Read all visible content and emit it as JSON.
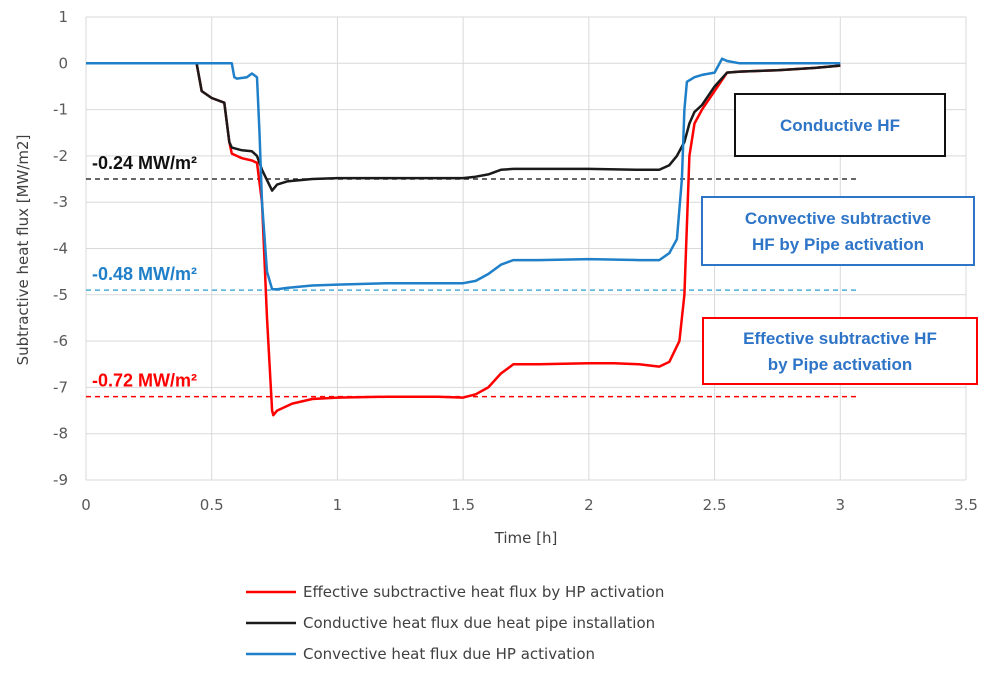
{
  "chart_data": {
    "type": "line",
    "xlabel": "Time [h]",
    "ylabel": "Subtractive heat flux [MW/m2]",
    "xlim": [
      0,
      3.5
    ],
    "ylim": [
      -9,
      1
    ],
    "x_ticks": [
      "0",
      "0.5",
      "1",
      "1.5",
      "2",
      "2.5",
      "3",
      "3.5"
    ],
    "y_ticks": [
      "1",
      "0",
      "-1",
      "-2",
      "-3",
      "-4",
      "-5",
      "-6",
      "-7",
      "-8",
      "-9"
    ],
    "grid": true,
    "legend_position": "bottom",
    "series": [
      {
        "name": "Effective subctractive heat flux by HP activation",
        "color": "#ff0000",
        "points": [
          [
            0,
            0
          ],
          [
            0.2,
            0
          ],
          [
            0.44,
            0
          ],
          [
            0.46,
            -0.6
          ],
          [
            0.5,
            -0.75
          ],
          [
            0.55,
            -0.85
          ],
          [
            0.57,
            -1.7
          ],
          [
            0.58,
            -1.95
          ],
          [
            0.62,
            -2.05
          ],
          [
            0.66,
            -2.1
          ],
          [
            0.68,
            -2.15
          ],
          [
            0.7,
            -3.0
          ],
          [
            0.72,
            -5.5
          ],
          [
            0.74,
            -7.5
          ],
          [
            0.745,
            -7.6
          ],
          [
            0.76,
            -7.5
          ],
          [
            0.82,
            -7.35
          ],
          [
            0.9,
            -7.25
          ],
          [
            1.0,
            -7.22
          ],
          [
            1.2,
            -7.2
          ],
          [
            1.4,
            -7.2
          ],
          [
            1.5,
            -7.22
          ],
          [
            1.55,
            -7.15
          ],
          [
            1.6,
            -7.0
          ],
          [
            1.65,
            -6.7
          ],
          [
            1.7,
            -6.5
          ],
          [
            1.8,
            -6.5
          ],
          [
            2.0,
            -6.48
          ],
          [
            2.1,
            -6.48
          ],
          [
            2.2,
            -6.5
          ],
          [
            2.28,
            -6.55
          ],
          [
            2.32,
            -6.45
          ],
          [
            2.36,
            -6.0
          ],
          [
            2.38,
            -5.0
          ],
          [
            2.39,
            -3.5
          ],
          [
            2.4,
            -2.0
          ],
          [
            2.42,
            -1.3
          ],
          [
            2.45,
            -1.0
          ],
          [
            2.5,
            -0.6
          ],
          [
            2.55,
            -0.2
          ],
          [
            2.6,
            -0.18
          ],
          [
            2.75,
            -0.15
          ],
          [
            2.9,
            -0.1
          ],
          [
            3.0,
            -0.05
          ]
        ]
      },
      {
        "name": "Conductive heat flux due heat pipe installation",
        "color": "#1a1a1a",
        "points": [
          [
            0,
            0
          ],
          [
            0.2,
            0
          ],
          [
            0.44,
            0
          ],
          [
            0.46,
            -0.6
          ],
          [
            0.5,
            -0.75
          ],
          [
            0.55,
            -0.85
          ],
          [
            0.57,
            -1.7
          ],
          [
            0.58,
            -1.82
          ],
          [
            0.62,
            -1.88
          ],
          [
            0.66,
            -1.9
          ],
          [
            0.68,
            -2.0
          ],
          [
            0.7,
            -2.3
          ],
          [
            0.74,
            -2.75
          ],
          [
            0.76,
            -2.62
          ],
          [
            0.8,
            -2.55
          ],
          [
            0.9,
            -2.5
          ],
          [
            1.0,
            -2.48
          ],
          [
            1.2,
            -2.48
          ],
          [
            1.4,
            -2.48
          ],
          [
            1.5,
            -2.48
          ],
          [
            1.55,
            -2.45
          ],
          [
            1.6,
            -2.4
          ],
          [
            1.65,
            -2.3
          ],
          [
            1.7,
            -2.28
          ],
          [
            1.8,
            -2.28
          ],
          [
            2.0,
            -2.28
          ],
          [
            2.2,
            -2.3
          ],
          [
            2.28,
            -2.3
          ],
          [
            2.32,
            -2.2
          ],
          [
            2.35,
            -2.0
          ],
          [
            2.38,
            -1.7
          ],
          [
            2.4,
            -1.3
          ],
          [
            2.42,
            -1.05
          ],
          [
            2.45,
            -0.9
          ],
          [
            2.5,
            -0.5
          ],
          [
            2.55,
            -0.2
          ],
          [
            2.6,
            -0.18
          ],
          [
            2.75,
            -0.15
          ],
          [
            2.9,
            -0.1
          ],
          [
            3.0,
            -0.05
          ]
        ]
      },
      {
        "name": "Convective heat flux due HP activation",
        "color": "#1f7fc8",
        "points": [
          [
            0,
            0
          ],
          [
            0.3,
            0
          ],
          [
            0.58,
            0
          ],
          [
            0.59,
            -0.3
          ],
          [
            0.6,
            -0.33
          ],
          [
            0.64,
            -0.3
          ],
          [
            0.66,
            -0.22
          ],
          [
            0.68,
            -0.3
          ],
          [
            0.69,
            -1.5
          ],
          [
            0.7,
            -3.0
          ],
          [
            0.72,
            -4.5
          ],
          [
            0.74,
            -4.88
          ],
          [
            0.76,
            -4.88
          ],
          [
            0.8,
            -4.85
          ],
          [
            0.9,
            -4.8
          ],
          [
            1.0,
            -4.78
          ],
          [
            1.2,
            -4.75
          ],
          [
            1.4,
            -4.75
          ],
          [
            1.5,
            -4.75
          ],
          [
            1.55,
            -4.7
          ],
          [
            1.6,
            -4.55
          ],
          [
            1.65,
            -4.35
          ],
          [
            1.7,
            -4.25
          ],
          [
            1.8,
            -4.25
          ],
          [
            2.0,
            -4.23
          ],
          [
            2.2,
            -4.25
          ],
          [
            2.28,
            -4.25
          ],
          [
            2.32,
            -4.1
          ],
          [
            2.35,
            -3.8
          ],
          [
            2.37,
            -2.5
          ],
          [
            2.38,
            -1.0
          ],
          [
            2.39,
            -0.4
          ],
          [
            2.42,
            -0.3
          ],
          [
            2.45,
            -0.25
          ],
          [
            2.5,
            -0.2
          ],
          [
            2.53,
            0.1
          ],
          [
            2.55,
            0.05
          ],
          [
            2.6,
            0.0
          ],
          [
            2.8,
            0.0
          ],
          [
            3.0,
            0.0
          ]
        ]
      }
    ],
    "reference_lines": [
      {
        "label": "-0.24 MW/m²",
        "y": -2.5,
        "color": "#333333"
      },
      {
        "label": "-0.48 MW/m²",
        "y": -4.9,
        "color": "#4aaed6"
      },
      {
        "label": "-0.72 MW/m²",
        "y": -7.2,
        "color": "#ff0000"
      }
    ],
    "annotation_boxes": [
      {
        "lines": [
          "Conductive  HF"
        ],
        "text_color": "#2e74c7",
        "border_color": "#111111"
      },
      {
        "lines": [
          "Convective subtractive",
          "HF by Pipe activation"
        ],
        "text_color": "#2e74c7",
        "border_color": "#2e74c7"
      },
      {
        "lines": [
          "Effective subtractive HF",
          "by Pipe activation"
        ],
        "text_color": "#2e74c7",
        "border_color": "#ff0000"
      }
    ]
  }
}
